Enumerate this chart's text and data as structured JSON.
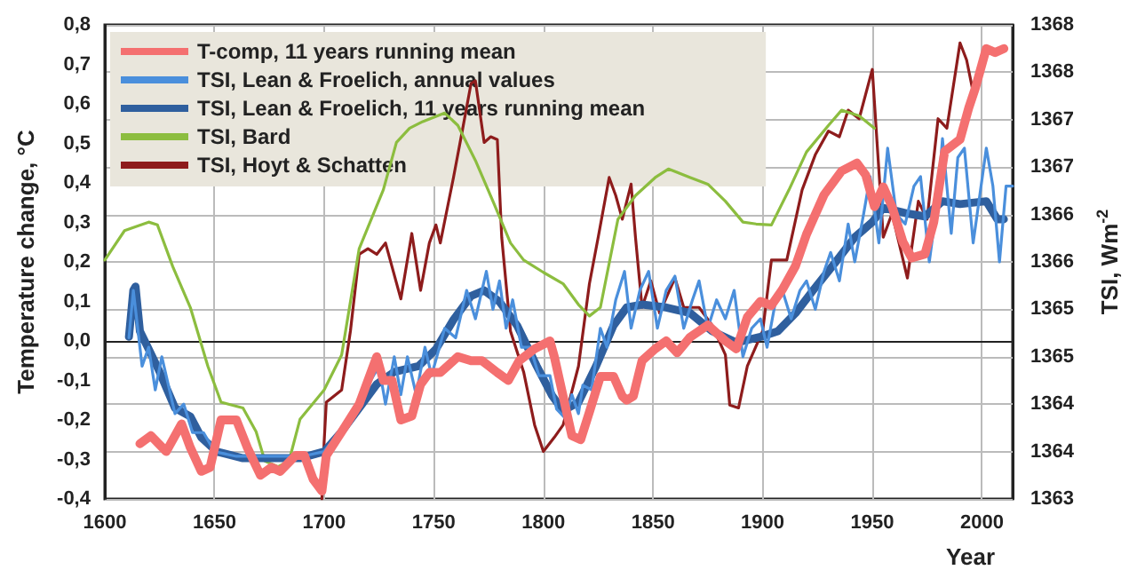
{
  "chart_data": {
    "type": "line",
    "xlabel": "Year",
    "ylabel": "Temperature change, °C",
    "y2label": "TSI, Wm$^{-2}$",
    "xlim": [
      1600,
      2014
    ],
    "xticks": [
      1600,
      1650,
      1700,
      1750,
      1800,
      1850,
      1900,
      1950,
      2000
    ],
    "ylim": [
      -0.4,
      0.8
    ],
    "yticks": [
      {
        "value": -0.4,
        "label": "-0,4"
      },
      {
        "value": -0.3,
        "label": "-0,3"
      },
      {
        "value": -0.2,
        "label": "-0,2"
      },
      {
        "value": -0.1,
        "label": "-0,1"
      },
      {
        "value": 0,
        "label": "0,0"
      },
      {
        "value": 0.1,
        "label": "0,1"
      },
      {
        "value": 0.2,
        "label": "0,2"
      },
      {
        "value": 0.3,
        "label": "0,3"
      },
      {
        "value": 0.4,
        "label": "0,4"
      },
      {
        "value": 0.5,
        "label": "0,5"
      },
      {
        "value": 0.6,
        "label": "0,6"
      },
      {
        "value": 0.7,
        "label": "0,7"
      },
      {
        "value": 0.8,
        "label": "0,8"
      }
    ],
    "y2lim": [
      1363,
      1368
    ],
    "y2ticks": [
      1363,
      {
        "value": 1363.5,
        "label": "1364"
      },
      1364,
      {
        "value": 1364.5,
        "label": "1365"
      },
      1365,
      {
        "value": 1365.5,
        "label": "1366"
      },
      1366,
      {
        "value": 1366.5,
        "label": "1367"
      },
      1367,
      {
        "value": 1367.5,
        "label": "1368"
      },
      1368
    ],
    "grid": true,
    "legend": "top left",
    "marker": "none",
    "line_style": "solid",
    "series": [
      {
        "name": "T-comp, 11 years running mean",
        "color": "#f47070",
        "x": [
          1616,
          1621,
          1628,
          1635,
          1639,
          1644,
          1648,
          1653,
          1660,
          1665,
          1671,
          1676,
          1680,
          1687,
          1691,
          1695,
          1699,
          1701,
          1708,
          1716,
          1724,
          1727,
          1731,
          1735,
          1740,
          1744,
          1748,
          1753,
          1761,
          1767,
          1772,
          1779,
          1784,
          1789,
          1796,
          1803,
          1805,
          1809,
          1813,
          1817,
          1821,
          1826,
          1832,
          1836,
          1838,
          1841,
          1845,
          1851,
          1856,
          1861,
          1867,
          1875,
          1883,
          1888,
          1893,
          1899,
          1904,
          1909,
          1915,
          1920,
          1928,
          1936,
          1943,
          1947,
          1951,
          1955,
          1959,
          1964,
          1968,
          1974,
          1978,
          1983,
          1990,
          1994,
          1997,
          2002,
          2006,
          2010
        ],
        "values": [
          -0.26,
          -0.24,
          -0.28,
          -0.21,
          -0.27,
          -0.33,
          -0.32,
          -0.2,
          -0.2,
          -0.27,
          -0.34,
          -0.32,
          -0.33,
          -0.29,
          -0.29,
          -0.35,
          -0.38,
          -0.29,
          -0.23,
          -0.16,
          -0.04,
          -0.1,
          -0.1,
          -0.2,
          -0.19,
          -0.11,
          -0.08,
          -0.08,
          -0.04,
          -0.05,
          -0.05,
          -0.08,
          -0.1,
          -0.05,
          -0.02,
          0.0,
          -0.04,
          -0.14,
          -0.24,
          -0.25,
          -0.18,
          -0.09,
          -0.09,
          -0.14,
          -0.15,
          -0.14,
          -0.05,
          -0.02,
          0.0,
          -0.03,
          0.01,
          0.04,
          0.0,
          -0.02,
          0.06,
          0.1,
          0.09,
          0.13,
          0.19,
          0.27,
          0.37,
          0.43,
          0.45,
          0.42,
          0.34,
          0.39,
          0.34,
          0.25,
          0.21,
          0.22,
          0.3,
          0.48,
          0.51,
          0.59,
          0.64,
          0.74,
          0.73,
          0.74
        ]
      },
      {
        "name": "TSI, Lean & Froelich, annual values",
        "color": "#4a8fdc",
        "axis": "y2",
        "x": [
          1611,
          1613,
          1617,
          1620,
          1623,
          1626,
          1632,
          1636,
          1640,
          1645,
          1650,
          1660,
          1670,
          1680,
          1690,
          1700,
          1710,
          1720,
          1725,
          1728,
          1732,
          1735,
          1738,
          1742,
          1746,
          1749,
          1755,
          1760,
          1765,
          1769,
          1774,
          1777,
          1780,
          1783,
          1786,
          1790,
          1794,
          1798,
          1803,
          1806,
          1810,
          1813,
          1816,
          1818,
          1822,
          1826,
          1829,
          1833,
          1837,
          1840,
          1844,
          1848,
          1852,
          1856,
          1860,
          1864,
          1868,
          1871,
          1875,
          1879,
          1883,
          1887,
          1891,
          1895,
          1899,
          1902,
          1906,
          1909,
          1913,
          1917,
          1920,
          1924,
          1928,
          1931,
          1935,
          1939,
          1942,
          1946,
          1949,
          1953,
          1957,
          1961,
          1965,
          1969,
          1972,
          1976,
          1980,
          1982,
          1986,
          1989,
          1992,
          1996,
          1999,
          2002,
          2005,
          2008,
          2011,
          2014
        ],
        "values": [
          1364.7,
          1365.2,
          1364.4,
          1364.6,
          1364.15,
          1364.5,
          1363.9,
          1364.0,
          1363.7,
          1363.7,
          1363.5,
          1363.45,
          1363.45,
          1363.45,
          1363.45,
          1363.5,
          1363.8,
          1364.2,
          1364.4,
          1364.0,
          1364.5,
          1364.1,
          1364.5,
          1364.1,
          1364.6,
          1364.3,
          1364.8,
          1364.7,
          1365.2,
          1364.9,
          1365.4,
          1365.0,
          1365.3,
          1364.8,
          1365.1,
          1364.6,
          1364.6,
          1364.3,
          1364.3,
          1363.95,
          1363.85,
          1364.1,
          1363.9,
          1364.2,
          1364.15,
          1364.8,
          1364.6,
          1365.1,
          1365.4,
          1364.8,
          1365.2,
          1365.4,
          1364.8,
          1365.2,
          1365.35,
          1364.8,
          1365.1,
          1365.3,
          1364.8,
          1365.1,
          1364.9,
          1365.2,
          1364.5,
          1364.8,
          1364.9,
          1364.6,
          1365.1,
          1365.2,
          1364.9,
          1365.2,
          1365.3,
          1365.0,
          1365.4,
          1365.6,
          1365.3,
          1365.9,
          1365.5,
          1366.0,
          1366.4,
          1365.7,
          1366.7,
          1366.0,
          1365.9,
          1366.3,
          1366.4,
          1365.5,
          1366.2,
          1366.8,
          1365.8,
          1366.6,
          1366.7,
          1365.7,
          1366.2,
          1366.7,
          1366.3,
          1365.5,
          1366.3,
          1366.3
        ]
      },
      {
        "name": "TSI, Lean & Froelich, 11 years running mean",
        "color": "#2f5f9e",
        "axis": "y2",
        "x": [
          1611,
          1613,
          1614,
          1616,
          1620,
          1625,
          1632,
          1639,
          1644,
          1651,
          1663,
          1679,
          1689,
          1700,
          1708,
          1716,
          1724,
          1732,
          1743,
          1751,
          1759,
          1767,
          1773,
          1780,
          1788,
          1797,
          1804,
          1809,
          1816,
          1824,
          1832,
          1838,
          1845,
          1856,
          1867,
          1877,
          1888,
          1899,
          1907,
          1915,
          1923,
          1934,
          1942,
          1950,
          1955,
          1966,
          1974,
          1982,
          1990,
          2002,
          2007,
          2010
        ],
        "values": [
          1364.71,
          1365.2,
          1365.24,
          1364.77,
          1364.58,
          1364.34,
          1363.96,
          1363.87,
          1363.65,
          1363.5,
          1363.43,
          1363.43,
          1363.43,
          1363.5,
          1363.71,
          1363.96,
          1364.21,
          1364.34,
          1364.4,
          1364.58,
          1364.89,
          1365.14,
          1365.2,
          1365.08,
          1364.83,
          1364.4,
          1364.09,
          1363.93,
          1364.02,
          1364.4,
          1364.83,
          1365.02,
          1365.05,
          1365.02,
          1364.96,
          1364.77,
          1364.65,
          1364.71,
          1364.77,
          1364.96,
          1365.2,
          1365.52,
          1365.76,
          1365.92,
          1366.07,
          1366.01,
          1365.98,
          1366.14,
          1366.11,
          1366.14,
          1365.95,
          1365.95
        ]
      },
      {
        "name": "TSI, Bard",
        "color": "#8cbd3f",
        "axis": "y2",
        "x": [
          1600,
          1609,
          1620,
          1624,
          1631,
          1639,
          1647,
          1653,
          1663,
          1669,
          1673,
          1679,
          1684,
          1689,
          1700,
          1708,
          1716,
          1727,
          1733,
          1739,
          1745,
          1755,
          1761,
          1769,
          1777,
          1785,
          1791,
          1800,
          1809,
          1816,
          1821,
          1826,
          1834,
          1842,
          1851,
          1857,
          1867,
          1875,
          1883,
          1891,
          1897,
          1904,
          1912,
          1920,
          1930,
          1936,
          1944,
          1951
        ],
        "values": [
          1365.52,
          1365.83,
          1365.92,
          1365.89,
          1365.45,
          1365.02,
          1364.4,
          1364.02,
          1363.96,
          1363.71,
          1363.4,
          1363.34,
          1363.4,
          1363.84,
          1364.15,
          1364.52,
          1365.64,
          1366.26,
          1366.76,
          1366.91,
          1366.98,
          1367.07,
          1366.94,
          1366.57,
          1366.14,
          1365.7,
          1365.52,
          1365.39,
          1365.27,
          1365.05,
          1364.93,
          1365.02,
          1365.95,
          1366.2,
          1366.39,
          1366.48,
          1366.39,
          1366.32,
          1366.14,
          1365.92,
          1365.9,
          1365.89,
          1366.26,
          1366.66,
          1366.94,
          1367.1,
          1367.04,
          1366.91
        ]
      },
      {
        "name": "TSI, Hoyt & Schatten",
        "color": "#8e1c1c",
        "axis": "y2",
        "x": [
          1699,
          1700,
          1701,
          1708,
          1712,
          1716,
          1720,
          1724,
          1728,
          1735,
          1740,
          1744,
          1748,
          1751,
          1753,
          1759,
          1763,
          1767,
          1769,
          1773,
          1776,
          1779,
          1781,
          1785,
          1791,
          1796,
          1800,
          1805,
          1809,
          1816,
          1821,
          1825,
          1830,
          1833,
          1836,
          1840,
          1842,
          1845,
          1849,
          1853,
          1860,
          1864,
          1871,
          1877,
          1883,
          1885,
          1889,
          1893,
          1900,
          1904,
          1911,
          1918,
          1924,
          1930,
          1935,
          1939,
          1944,
          1950,
          1952,
          1955,
          1959,
          1966,
          1971,
          1975,
          1980,
          1984,
          1990,
          1993,
          1996
        ],
        "values": [
          1363.0,
          1363.59,
          1364.02,
          1364.15,
          1364.77,
          1365.58,
          1365.64,
          1365.58,
          1365.7,
          1365.11,
          1365.8,
          1365.2,
          1365.7,
          1365.89,
          1365.7,
          1366.39,
          1366.88,
          1367.38,
          1367.41,
          1366.76,
          1366.82,
          1366.79,
          1365.76,
          1364.77,
          1364.34,
          1363.78,
          1363.5,
          1363.65,
          1363.78,
          1364.4,
          1365.27,
          1365.76,
          1366.39,
          1366.2,
          1365.95,
          1366.32,
          1365.76,
          1365.02,
          1365.3,
          1364.96,
          1365.33,
          1365.02,
          1365.02,
          1364.83,
          1364.52,
          1363.99,
          1363.96,
          1364.4,
          1364.77,
          1365.52,
          1365.52,
          1366.26,
          1366.63,
          1366.88,
          1366.82,
          1367.1,
          1367.01,
          1367.53,
          1366.82,
          1365.76,
          1366.01,
          1365.33,
          1366.14,
          1365.95,
          1367.01,
          1366.91,
          1367.81,
          1367.63,
          1367.29
        ]
      }
    ]
  }
}
